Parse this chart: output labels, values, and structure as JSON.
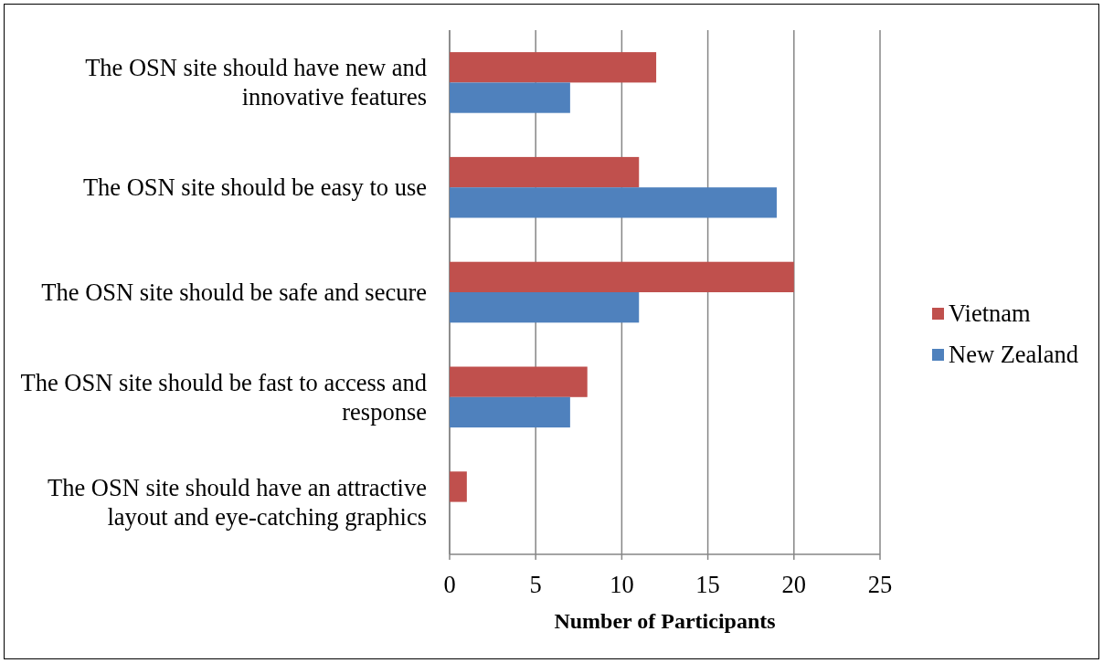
{
  "chart_data": {
    "type": "bar",
    "orientation": "horizontal",
    "xlabel": "Number of Participants",
    "categories": [
      "The OSN site should have new and innovative features",
      "The OSN site should be easy to use",
      "The OSN site should be safe and secure",
      "The OSN site should be fast to access and response",
      "The OSN site should have an attractive layout and eye-catching graphics"
    ],
    "series": [
      {
        "name": "Vietnam",
        "color": "#c0504d",
        "values": [
          12,
          11,
          20,
          8,
          1
        ]
      },
      {
        "name": "New Zealand",
        "color": "#4f81bd",
        "values": [
          7,
          19,
          11,
          7,
          0
        ]
      }
    ],
    "xlim": [
      0,
      25
    ],
    "xticks": [
      0,
      5,
      10,
      15,
      20,
      25
    ],
    "grid": "x",
    "legend": "right"
  }
}
